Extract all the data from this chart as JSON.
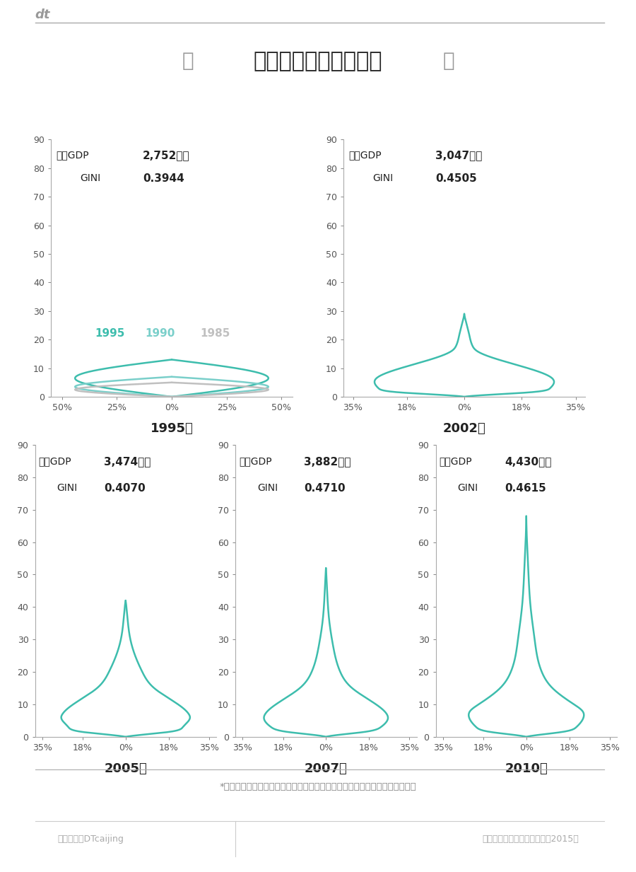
{
  "title": "中国居民收入结构变迁",
  "background_color": "#ffffff",
  "teal_color": "#3dbdad",
  "teal_mid": "#7acfca",
  "gray_light": "#b8b8b8",
  "text_color": "#222222",
  "panels": [
    {
      "year": "1995年",
      "gdp_label": "人均GDP",
      "gdp_value": "2,752美元",
      "gini_label": "GINI",
      "gini_value": "0.3944",
      "xlim": [
        -0.55,
        0.55
      ],
      "ylim": [
        0,
        90
      ],
      "xticks": [
        -0.5,
        -0.25,
        0.0,
        0.25,
        0.5
      ],
      "xtick_labels": [
        "50%",
        "25%",
        "0%",
        "25%",
        "50%"
      ],
      "multi_year": true
    },
    {
      "year": "2002年",
      "gdp_label": "人均GDP",
      "gdp_value": "3,047美元",
      "gini_label": "GINI",
      "gini_value": "0.4505",
      "xlim": [
        -0.38,
        0.38
      ],
      "ylim": [
        0,
        90
      ],
      "xticks": [
        -0.35,
        -0.18,
        0.0,
        0.18,
        0.35
      ],
      "xtick_labels": [
        "35%",
        "18%",
        "0%",
        "18%",
        "35%"
      ],
      "multi_year": false
    },
    {
      "year": "2005年",
      "gdp_label": "人均GDP",
      "gdp_value": "3,474美元",
      "gini_label": "GINI",
      "gini_value": "0.4070",
      "xlim": [
        -0.38,
        0.38
      ],
      "ylim": [
        0,
        90
      ],
      "xticks": [
        -0.35,
        -0.18,
        0.0,
        0.18,
        0.35
      ],
      "xtick_labels": [
        "35%",
        "18%",
        "0%",
        "18%",
        "35%"
      ],
      "multi_year": false
    },
    {
      "year": "2007年",
      "gdp_label": "人均GDP",
      "gdp_value": "3,882美元",
      "gini_label": "GINI",
      "gini_value": "0.4710",
      "xlim": [
        -0.38,
        0.38
      ],
      "ylim": [
        0,
        90
      ],
      "xticks": [
        -0.35,
        -0.18,
        0.0,
        0.18,
        0.35
      ],
      "xtick_labels": [
        "35%",
        "18%",
        "0%",
        "18%",
        "35%"
      ],
      "multi_year": false
    },
    {
      "year": "2010年",
      "gdp_label": "人均GDP",
      "gdp_value": "4,430美元",
      "gini_label": "GINI",
      "gini_value": "0.4615",
      "xlim": [
        -0.38,
        0.38
      ],
      "ylim": [
        0,
        90
      ],
      "xticks": [
        -0.35,
        -0.18,
        0.0,
        0.18,
        0.35
      ],
      "xtick_labels": [
        "35%",
        "18%",
        "0%",
        "18%",
        "35%"
      ],
      "multi_year": false
    }
  ],
  "curves_1995": [
    {
      "label": "1995",
      "color": "#3dbdad",
      "peak_y": 13,
      "base_hw": 0.44,
      "base_top_y": 5,
      "waist_hw": 0.03
    },
    {
      "label": "1990",
      "color": "#7acfca",
      "peak_y": 7,
      "base_hw": 0.44,
      "base_top_y": 5,
      "waist_hw": 0.03
    },
    {
      "label": "1985",
      "color": "#c0c0c0",
      "peak_y": 5,
      "base_hw": 0.44,
      "base_top_y": 5,
      "waist_hw": 0.03
    }
  ],
  "footnote": "*纵轴为家庭人均年收入（人民币千元），横轴为某一收入水平对应的人口比重",
  "source": "资料来源：陈宗胜、高玉伟（2015）",
  "wechat": "微信公号：DTcaijing"
}
